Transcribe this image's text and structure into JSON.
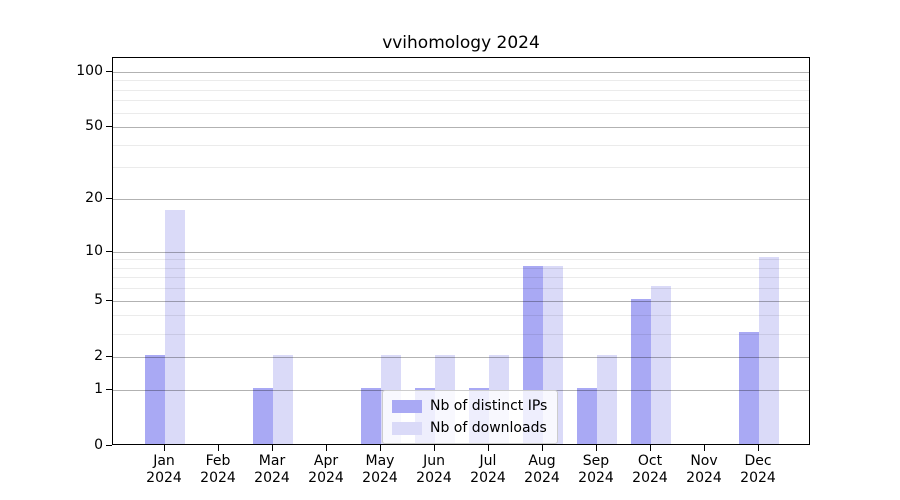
{
  "title": "vvihomology 2024",
  "legend": {
    "items": [
      {
        "label": "Nb of distinct IPs",
        "color": "#a9a9f4"
      },
      {
        "label": "Nb of downloads",
        "color": "#dadaf8"
      }
    ]
  },
  "chart_data": {
    "type": "bar",
    "title": "vvihomology 2024",
    "categories": [
      {
        "month": "Jan",
        "year": "2024"
      },
      {
        "month": "Feb",
        "year": "2024"
      },
      {
        "month": "Mar",
        "year": "2024"
      },
      {
        "month": "Apr",
        "year": "2024"
      },
      {
        "month": "May",
        "year": "2024"
      },
      {
        "month": "Jun",
        "year": "2024"
      },
      {
        "month": "Jul",
        "year": "2024"
      },
      {
        "month": "Aug",
        "year": "2024"
      },
      {
        "month": "Sep",
        "year": "2024"
      },
      {
        "month": "Oct",
        "year": "2024"
      },
      {
        "month": "Nov",
        "year": "2024"
      },
      {
        "month": "Dec",
        "year": "2024"
      }
    ],
    "series": [
      {
        "name": "Nb of distinct IPs",
        "color": "#a9a9f4",
        "values": [
          2,
          0,
          1,
          0,
          1,
          1,
          1,
          8,
          1,
          5,
          0,
          3
        ]
      },
      {
        "name": "Nb of downloads",
        "color": "#dadaf8",
        "values": [
          17,
          0,
          2,
          0,
          2,
          2,
          2,
          8,
          2,
          6,
          0,
          9
        ]
      }
    ],
    "yaxis": {
      "scale": "log1p",
      "ticks": [
        0,
        1,
        2,
        5,
        10,
        20,
        50,
        100
      ],
      "minor_ticks": [
        3,
        4,
        6,
        7,
        8,
        9,
        30,
        40,
        60,
        70,
        80,
        90
      ],
      "ylim": [
        0,
        118.6
      ]
    },
    "grid": true,
    "legend_position": "lower center"
  },
  "colors": {
    "major_grid": "rgba(0,0,0,0.30)",
    "minor_grid": "rgba(0,0,0,0.08)",
    "spine": "#000000",
    "background": "#ffffff"
  }
}
